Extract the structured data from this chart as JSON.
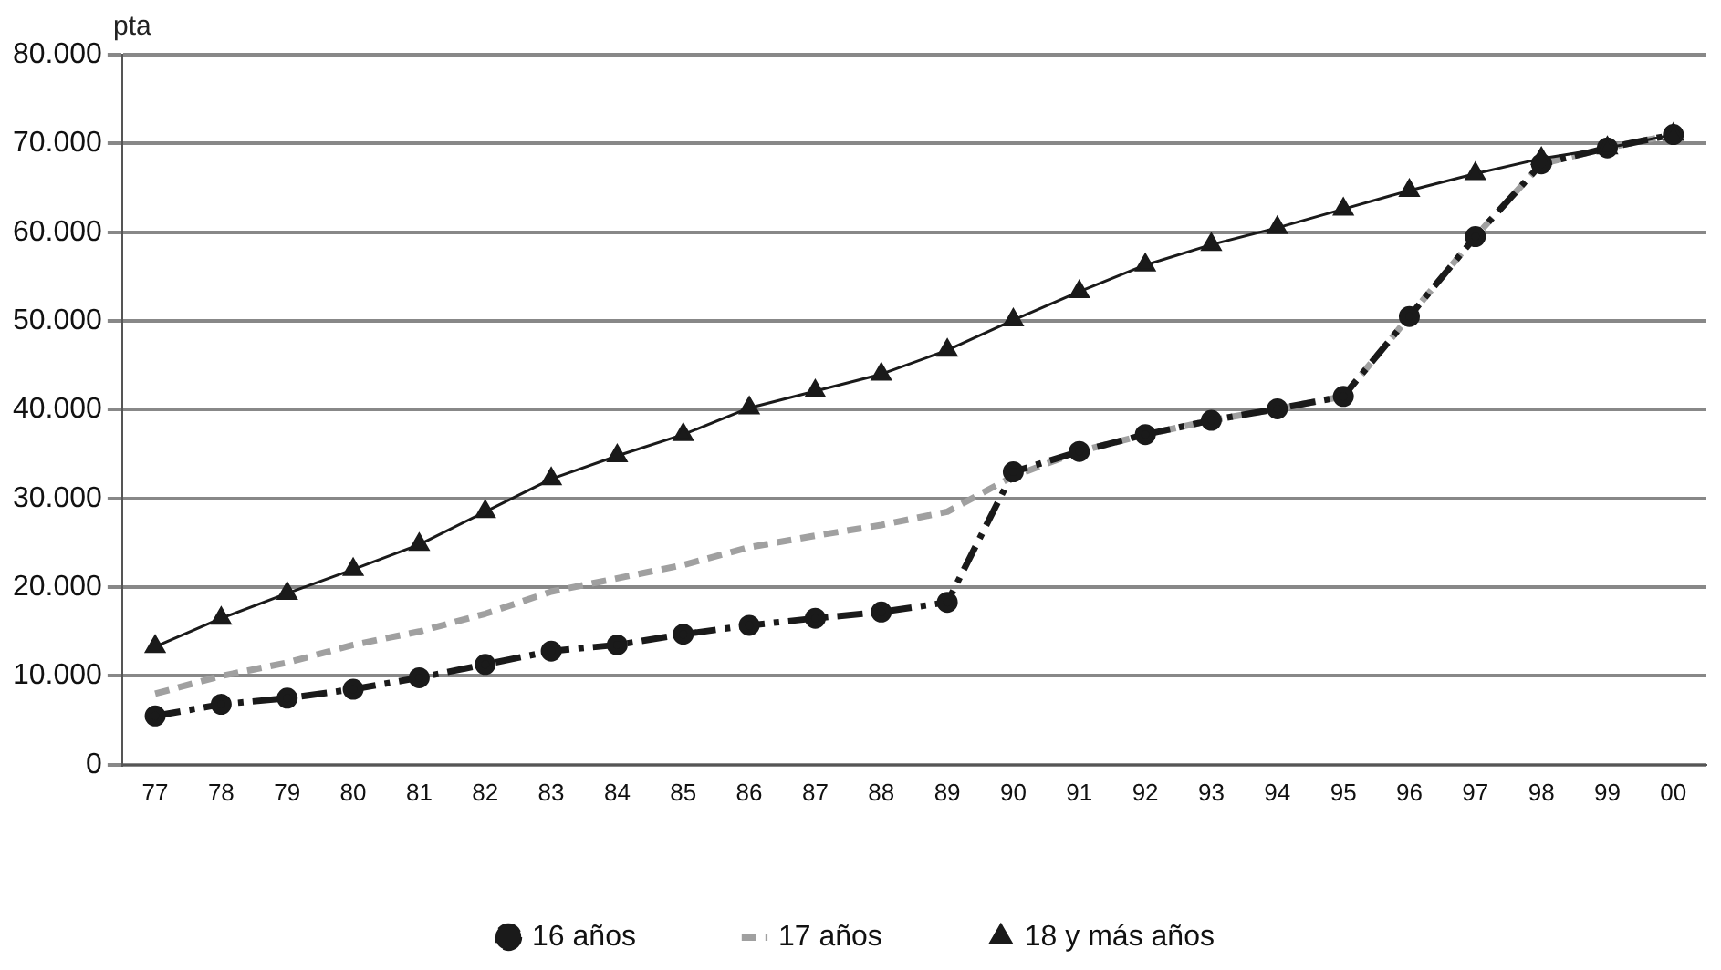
{
  "chart_data": {
    "type": "line",
    "ylabel": "pta",
    "categories": [
      "77",
      "78",
      "79",
      "80",
      "81",
      "82",
      "83",
      "84",
      "85",
      "86",
      "87",
      "88",
      "89",
      "90",
      "91",
      "92",
      "93",
      "94",
      "95",
      "96",
      "97",
      "98",
      "99",
      "00"
    ],
    "series": [
      {
        "name": "16 años",
        "color": "#1a1a1a",
        "line_style": "dashdot",
        "marker": "circle",
        "values": [
          5500,
          6800,
          7500,
          8500,
          9800,
          11300,
          12800,
          13500,
          14700,
          15700,
          16500,
          17200,
          18300,
          33000,
          35300,
          37200,
          38800,
          40100,
          41500,
          50500,
          59500,
          67700,
          69500,
          71000
        ]
      },
      {
        "name": "17 años",
        "color": "#a0a0a0",
        "line_style": "dashed",
        "marker": "none",
        "values": [
          8000,
          10000,
          11500,
          13500,
          15000,
          17000,
          19500,
          21000,
          22500,
          24500,
          25800,
          27000,
          28500,
          32500,
          35300,
          37200,
          38800,
          40100,
          41500,
          50500,
          59500,
          67700,
          69500,
          71000
        ]
      },
      {
        "name": "18 y más años",
        "color": "#1a1a1a",
        "line_style": "solid",
        "marker": "triangle",
        "values": [
          13300,
          16500,
          19300,
          22000,
          24800,
          28500,
          32200,
          34800,
          37200,
          40200,
          42100,
          44000,
          46700,
          50100,
          53300,
          56300,
          58600,
          60500,
          62600,
          64700,
          66600,
          68300,
          69500,
          71000
        ]
      }
    ],
    "ylim": [
      0,
      80000
    ],
    "yticks": [
      {
        "value": 0,
        "label": "0"
      },
      {
        "value": 10000,
        "label": "10.000"
      },
      {
        "value": 20000,
        "label": "20.000"
      },
      {
        "value": 30000,
        "label": "30.000"
      },
      {
        "value": 40000,
        "label": "40.000"
      },
      {
        "value": 50000,
        "label": "50.000"
      },
      {
        "value": 60000,
        "label": "60.000"
      },
      {
        "value": 70000,
        "label": "70.000"
      },
      {
        "value": 80000,
        "label": "80.000"
      }
    ],
    "grid": "y",
    "legend": "bottom"
  }
}
